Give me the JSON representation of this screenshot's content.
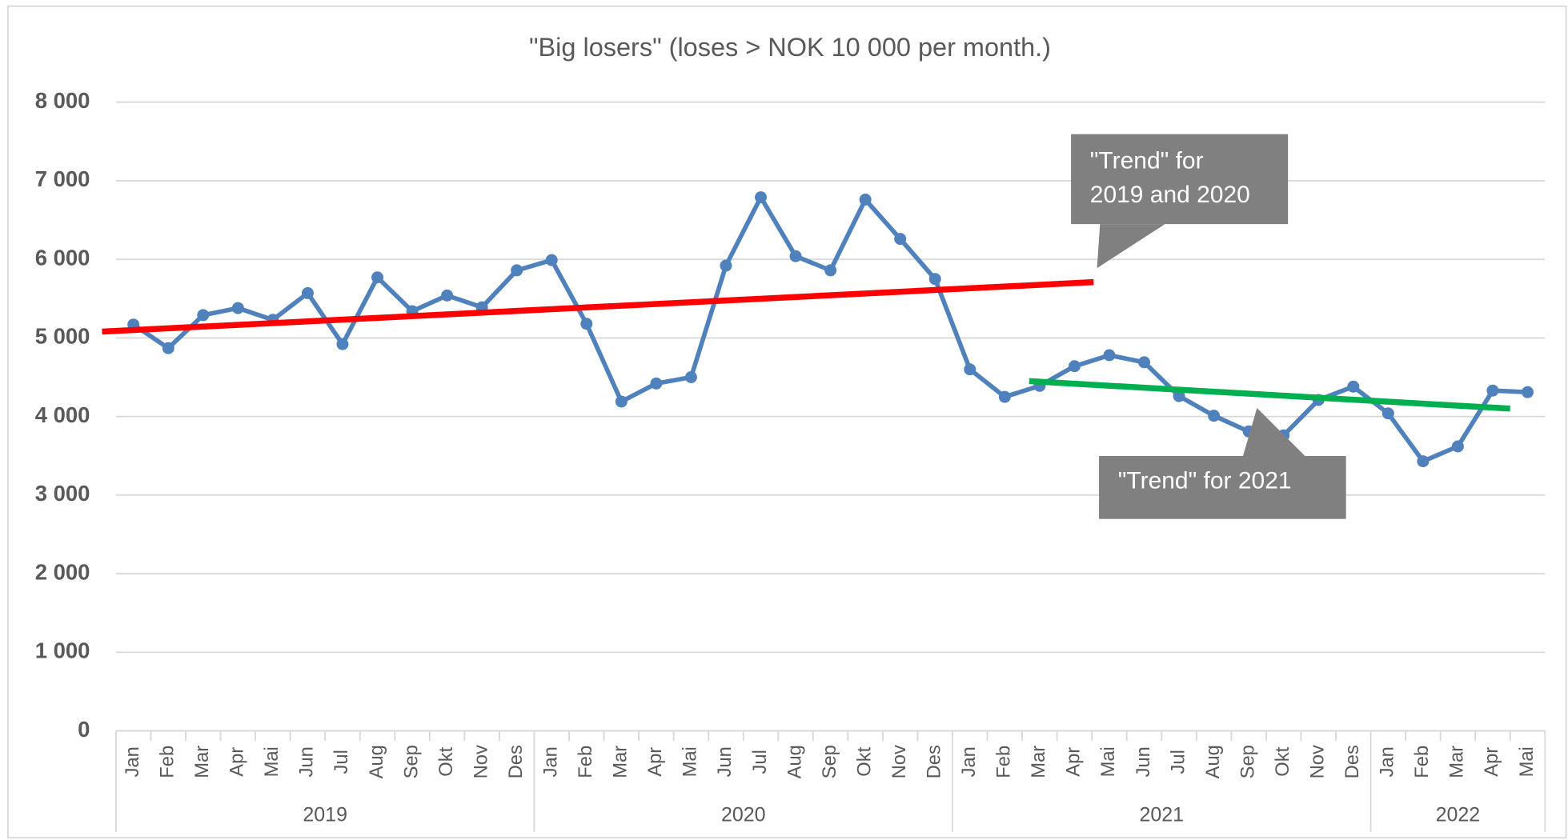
{
  "chart_data": {
    "type": "line",
    "title": "\"Big losers\" (loses > NOK 10 000 per month.)",
    "category_groups": [
      {
        "label": "2019",
        "categories": [
          "Jan",
          "Feb",
          "Mar",
          "Apr",
          "Mai",
          "Jun",
          "Jul",
          "Aug",
          "Sep",
          "Okt",
          "Nov",
          "Des"
        ]
      },
      {
        "label": "2020",
        "categories": [
          "Jan",
          "Feb",
          "Mar",
          "Apr",
          "Mai",
          "Jun",
          "Jul",
          "Aug",
          "Sep",
          "Okt",
          "Nov",
          "Des"
        ]
      },
      {
        "label": "2021",
        "categories": [
          "Jan",
          "Feb",
          "Mar",
          "Apr",
          "Mai",
          "Jun",
          "Jul",
          "Aug",
          "Sep",
          "Okt",
          "Nov",
          "Des"
        ]
      },
      {
        "label": "2022",
        "categories": [
          "Jan",
          "Feb",
          "Mar",
          "Apr",
          "Mai"
        ]
      }
    ],
    "series": [
      {
        "color": "#4f81bd",
        "values": [
          5170,
          4870,
          5290,
          5380,
          5230,
          5570,
          4920,
          5770,
          5340,
          5540,
          5390,
          5860,
          5990,
          5180,
          4190,
          4420,
          4500,
          5920,
          6790,
          6040,
          5860,
          6760,
          6260,
          5750,
          4600,
          4250,
          4390,
          4640,
          4780,
          4690,
          4260,
          4010,
          3810,
          3760,
          4210,
          4380,
          4040,
          3430,
          3620,
          4330,
          4310
        ]
      }
    ],
    "trend_lines": [
      {
        "color": "#ff0000",
        "x": [
          -0.9,
          27.55
        ],
        "values": [
          5080,
          5710
        ],
        "label": [
          "\"Trend\" for",
          "2019 and 2020"
        ]
      },
      {
        "color": "#00b050",
        "x": [
          25.7,
          39.5
        ],
        "values": [
          4450,
          4100
        ],
        "label": [
          "\"Trend\" for 2021"
        ]
      }
    ],
    "ylim": [
      0,
      8000
    ],
    "yticks": [
      {
        "value": 0,
        "label": "0"
      },
      {
        "value": 1000,
        "label": "1 000"
      },
      {
        "value": 2000,
        "label": "2 000"
      },
      {
        "value": 3000,
        "label": "3 000"
      },
      {
        "value": 4000,
        "label": "4 000"
      },
      {
        "value": 5000,
        "label": "5 000"
      },
      {
        "value": 6000,
        "label": "6 000"
      },
      {
        "value": 7000,
        "label": "7 000"
      },
      {
        "value": 8000,
        "label": "8 000"
      }
    ],
    "grid": true
  }
}
